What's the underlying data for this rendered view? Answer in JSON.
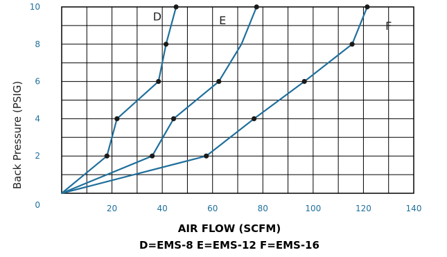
{
  "chart_data": {
    "type": "line",
    "xlabel": "AIR FLOW (SCFM)",
    "subtitle": "D=EMS-8 E=EMS-12 F=EMS-16",
    "ylabel": "Back Pressure (PSIG)",
    "xlim": [
      0,
      140
    ],
    "ylim": [
      0,
      10
    ],
    "x_ticks": [
      20,
      40,
      60,
      80,
      100,
      120,
      140
    ],
    "y_ticks": [
      0,
      2,
      4,
      6,
      8,
      10
    ],
    "grid": true,
    "series": [
      {
        "name": "D",
        "color": "#1f6f9c",
        "points": [
          [
            0,
            0
          ],
          [
            18,
            2
          ],
          [
            22,
            4
          ],
          [
            38.5,
            6
          ],
          [
            41.5,
            8
          ],
          [
            45.5,
            10
          ]
        ],
        "markers": [
          [
            18,
            2
          ],
          [
            22,
            4
          ],
          [
            38.5,
            6
          ],
          [
            41.5,
            8
          ],
          [
            45.5,
            10
          ]
        ]
      },
      {
        "name": "E",
        "color": "#1f6f9c",
        "points": [
          [
            0,
            0
          ],
          [
            36,
            2
          ],
          [
            44.5,
            4
          ],
          [
            62.5,
            6
          ],
          [
            71.5,
            8
          ],
          [
            77.5,
            10
          ]
        ],
        "markers": [
          [
            36,
            2
          ],
          [
            44.5,
            4
          ],
          [
            62.5,
            6
          ],
          [
            77.5,
            10
          ]
        ]
      },
      {
        "name": "F",
        "color": "#1f6f9c",
        "points": [
          [
            0,
            0
          ],
          [
            57.5,
            2
          ],
          [
            76.5,
            4
          ],
          [
            96.5,
            6
          ],
          [
            115.5,
            8
          ],
          [
            121.5,
            10
          ]
        ],
        "markers": [
          [
            57.5,
            2
          ],
          [
            76.5,
            4
          ],
          [
            96.5,
            6
          ],
          [
            115.5,
            8
          ],
          [
            121.5,
            10
          ]
        ]
      }
    ],
    "series_labels": [
      {
        "text": "D",
        "x": 38,
        "y": 9.5
      },
      {
        "text": "E",
        "x": 64,
        "y": 9.3
      },
      {
        "text": "F",
        "x": 130,
        "y": 9.0
      }
    ]
  }
}
